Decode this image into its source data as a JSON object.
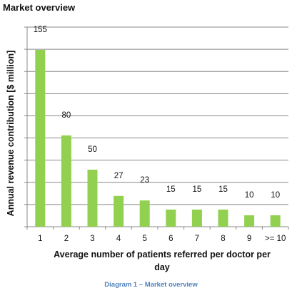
{
  "page_title": "Market overview",
  "caption": "Diagram 1 – Market overview",
  "colors": {
    "bar": "#92d050",
    "grid": "#888888",
    "axis": "#888888"
  },
  "chart_data": {
    "type": "bar",
    "title": "",
    "xlabel": "Average number of patients referred per doctor per day",
    "xlabel_lines": [
      "Average number of patients referred per doctor per",
      "day"
    ],
    "ylabel": "Annual revenue contribution [$ million]",
    "categories": [
      "1",
      "2",
      "3",
      "4",
      "5",
      "6",
      "7",
      "8",
      "9",
      ">= 10"
    ],
    "values": [
      155,
      80,
      50,
      27,
      23,
      15,
      15,
      15,
      10,
      10
    ],
    "ylim": [
      0,
      175
    ],
    "gridline_count": 9,
    "grid": true,
    "legend": "none"
  }
}
